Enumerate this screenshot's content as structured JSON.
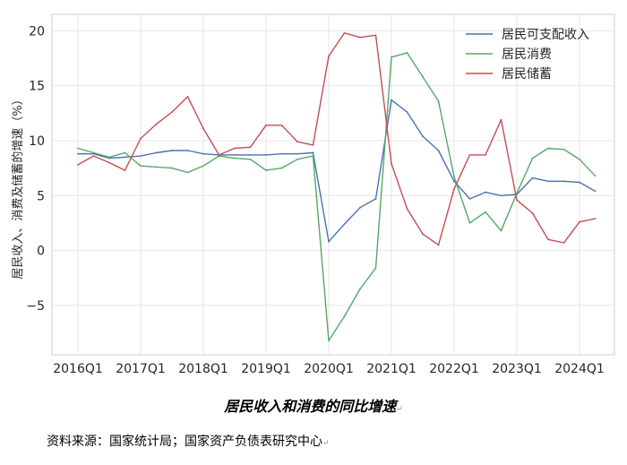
{
  "chart_data": {
    "type": "line",
    "title": "",
    "xlabel": "",
    "ylabel": "居民收入、消费及储蓄的增速（%）",
    "ylim": [
      -9.5,
      21.5
    ],
    "yticks": [
      -5,
      0,
      5,
      10,
      15,
      20
    ],
    "ytick_labels": [
      "−5",
      "0",
      "5",
      "10",
      "15",
      "20"
    ],
    "x": [
      "2016Q1",
      "2016Q2",
      "2016Q3",
      "2016Q4",
      "2017Q1",
      "2017Q2",
      "2017Q3",
      "2017Q4",
      "2018Q1",
      "2018Q2",
      "2018Q3",
      "2018Q4",
      "2019Q1",
      "2019Q2",
      "2019Q3",
      "2019Q4",
      "2020Q1",
      "2020Q2",
      "2020Q3",
      "2020Q4",
      "2021Q1",
      "2021Q2",
      "2021Q3",
      "2021Q4",
      "2022Q1",
      "2022Q2",
      "2022Q3",
      "2022Q4",
      "2023Q1",
      "2023Q2",
      "2023Q3",
      "2023Q4",
      "2024Q1",
      "2024Q2"
    ],
    "xtick_labels": [
      "2016Q1",
      "2017Q1",
      "2018Q1",
      "2019Q1",
      "2020Q1",
      "2021Q1",
      "2022Q1",
      "2023Q1",
      "2024Q1"
    ],
    "grid": true,
    "legend_position": "top-right",
    "series": [
      {
        "name": "居民可支配收入",
        "color": "#4C72B0",
        "values": [
          8.8,
          8.8,
          8.4,
          8.5,
          8.6,
          8.9,
          9.1,
          9.1,
          8.8,
          8.7,
          8.7,
          8.7,
          8.7,
          8.8,
          8.8,
          8.9,
          0.8,
          2.4,
          3.9,
          4.7,
          13.7,
          12.6,
          10.4,
          9.1,
          6.3,
          4.7,
          5.3,
          5.0,
          5.1,
          6.6,
          6.3,
          6.3,
          6.2,
          5.4
        ]
      },
      {
        "name": "居民消费",
        "color": "#55A868",
        "values": [
          9.3,
          8.9,
          8.5,
          8.9,
          7.7,
          7.6,
          7.5,
          7.1,
          7.7,
          8.6,
          8.4,
          8.3,
          7.3,
          7.5,
          8.3,
          8.6,
          -8.2,
          -6.0,
          -3.5,
          -1.6,
          17.6,
          18.0,
          15.8,
          13.6,
          6.7,
          2.5,
          3.5,
          1.8,
          5.2,
          8.4,
          9.3,
          9.2,
          8.3,
          6.8
        ]
      },
      {
        "name": "居民储蓄",
        "color": "#C44E52",
        "values": [
          7.8,
          8.6,
          8.0,
          7.3,
          10.2,
          11.5,
          12.6,
          14.0,
          11.1,
          8.7,
          9.3,
          9.4,
          11.4,
          11.4,
          9.9,
          9.6,
          17.7,
          19.8,
          19.4,
          19.6,
          7.9,
          3.8,
          1.5,
          0.5,
          5.6,
          8.7,
          8.7,
          11.9,
          4.6,
          3.4,
          1.0,
          0.7,
          2.6,
          2.9
        ]
      }
    ]
  },
  "caption": "居民收入和消费的同比增速",
  "source": "资料来源：国家统计局；国家资产负债表研究中心",
  "paragraph_mark": "↵"
}
